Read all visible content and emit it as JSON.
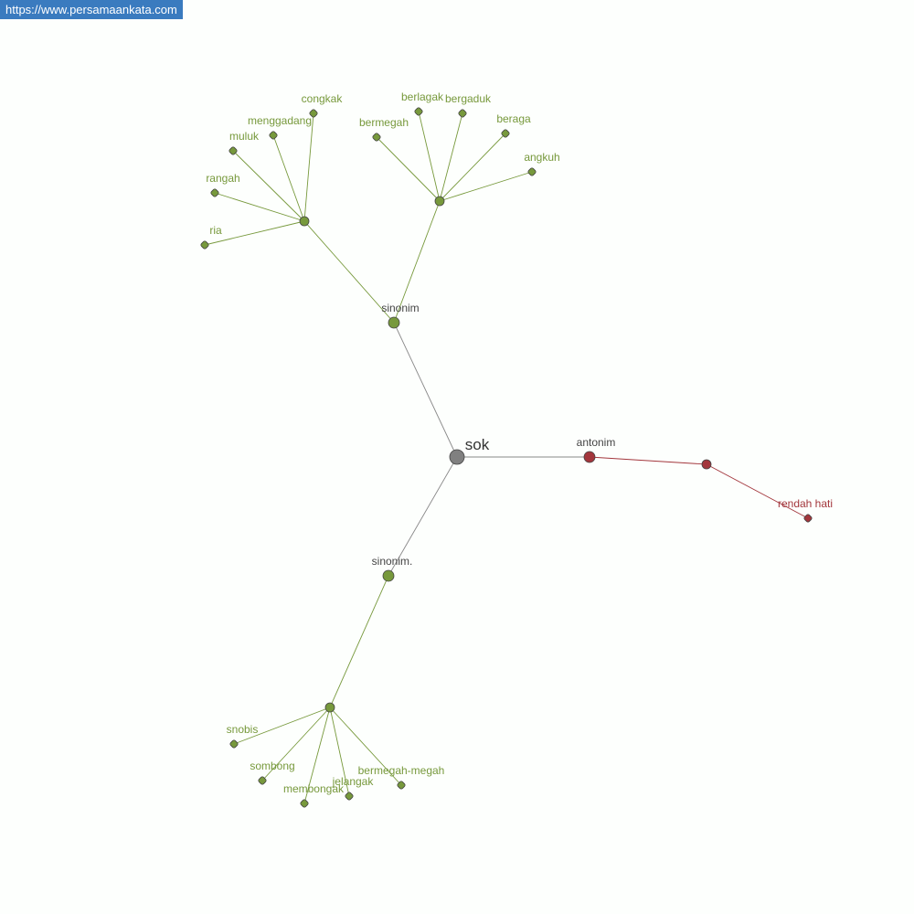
{
  "site_url": "https://www.persamaankata.com",
  "colors": {
    "synonym": "#77993c",
    "antonym": "#a3363c",
    "root": "#808080",
    "label_dark": "#444444"
  },
  "root": {
    "id": "sok",
    "label": "sok"
  },
  "nodes": [
    {
      "id": "sinonim",
      "label": "sinonim",
      "type": "category"
    },
    {
      "id": "hubA",
      "label": "",
      "type": "synonym"
    },
    {
      "id": "congkak",
      "label": "congkak",
      "type": "synonym"
    },
    {
      "id": "menggadang",
      "label": "menggadang",
      "type": "synonym"
    },
    {
      "id": "muluk",
      "label": "muluk",
      "type": "synonym"
    },
    {
      "id": "rangah",
      "label": "rangah",
      "type": "synonym"
    },
    {
      "id": "ria",
      "label": "ria",
      "type": "synonym"
    },
    {
      "id": "hubB",
      "label": "",
      "type": "synonym"
    },
    {
      "id": "bermegah",
      "label": "bermegah",
      "type": "synonym"
    },
    {
      "id": "berlagak",
      "label": "berlagak",
      "type": "synonym"
    },
    {
      "id": "bergaduk",
      "label": "bergaduk",
      "type": "synonym"
    },
    {
      "id": "beraga",
      "label": "beraga",
      "type": "synonym"
    },
    {
      "id": "angkuh",
      "label": "angkuh",
      "type": "synonym"
    },
    {
      "id": "sinonim2",
      "label": "sinonim.",
      "type": "category"
    },
    {
      "id": "hubC",
      "label": "",
      "type": "synonym"
    },
    {
      "id": "snobis",
      "label": "snobis",
      "type": "synonym"
    },
    {
      "id": "sombong",
      "label": "sombong",
      "type": "synonym"
    },
    {
      "id": "membongak",
      "label": "membongak",
      "type": "synonym"
    },
    {
      "id": "jelangak",
      "label": "jelangak",
      "type": "synonym"
    },
    {
      "id": "bermegah-megah",
      "label": "bermegah-megah",
      "type": "synonym"
    },
    {
      "id": "antonim",
      "label": "antonim",
      "type": "antonym-category"
    },
    {
      "id": "hubR",
      "label": "",
      "type": "antonym"
    },
    {
      "id": "rendah-hati",
      "label": "rendah hati",
      "type": "antonym"
    }
  ],
  "edges": [
    [
      "sok",
      "sinonim"
    ],
    [
      "sinonim",
      "hubA"
    ],
    [
      "sinonim",
      "hubB"
    ],
    [
      "hubA",
      "congkak"
    ],
    [
      "hubA",
      "menggadang"
    ],
    [
      "hubA",
      "muluk"
    ],
    [
      "hubA",
      "rangah"
    ],
    [
      "hubA",
      "ria"
    ],
    [
      "hubB",
      "bermegah"
    ],
    [
      "hubB",
      "berlagak"
    ],
    [
      "hubB",
      "bergaduk"
    ],
    [
      "hubB",
      "beraga"
    ],
    [
      "hubB",
      "angkuh"
    ],
    [
      "sok",
      "sinonim2"
    ],
    [
      "sinonim2",
      "hubC"
    ],
    [
      "hubC",
      "snobis"
    ],
    [
      "hubC",
      "sombong"
    ],
    [
      "hubC",
      "membongak"
    ],
    [
      "hubC",
      "jelangak"
    ],
    [
      "hubC",
      "bermegah-megah"
    ],
    [
      "sok",
      "antonim"
    ],
    [
      "antonim",
      "hubR"
    ],
    [
      "hubR",
      "rendah-hati"
    ]
  ]
}
